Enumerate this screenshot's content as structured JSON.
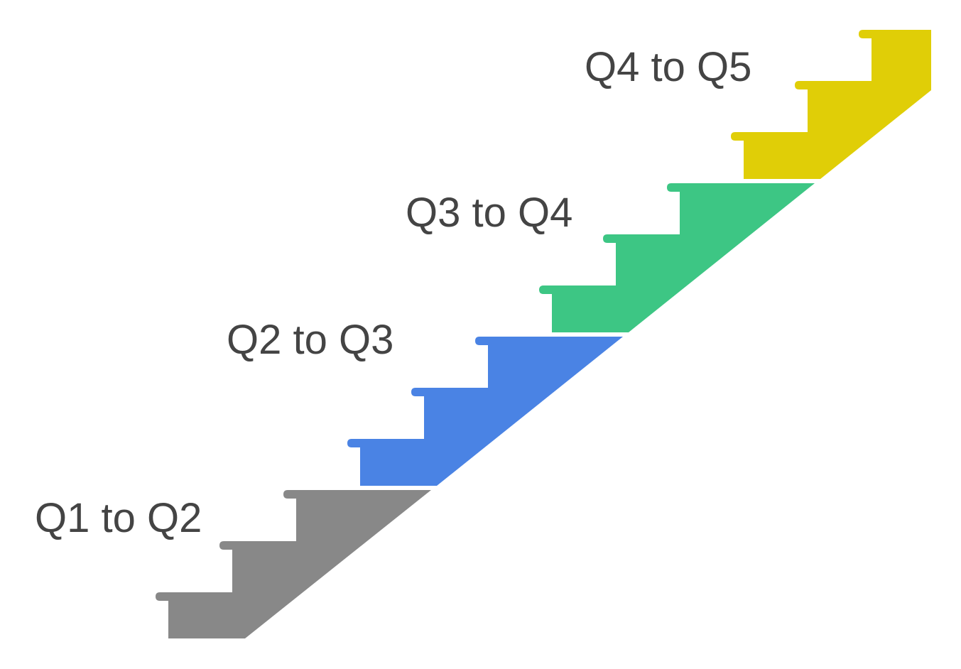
{
  "stages": [
    {
      "label": "Q1 to Q2",
      "color": "#888888"
    },
    {
      "label": "Q2 to Q3",
      "color": "#4A83E4"
    },
    {
      "label": "Q3 to Q4",
      "color": "#3DC684"
    },
    {
      "label": "Q4 to Q5",
      "color": "#E0CE07"
    }
  ]
}
